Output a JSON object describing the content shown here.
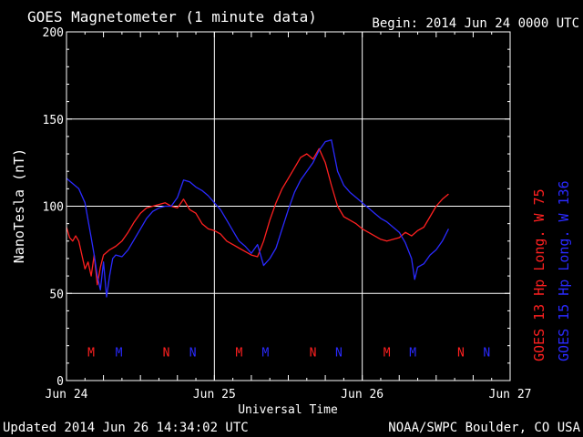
{
  "header": {
    "title": "GOES Magnetometer (1 minute data)",
    "begin": "Begin:  2014 Jun 24 0000 UTC"
  },
  "footer": {
    "updated": "Updated 2014 Jun 26 14:34:02 UTC",
    "credit": "NOAA/SWPC Boulder, CO USA"
  },
  "chart_data": {
    "type": "line",
    "title": "GOES Magnetometer (1 minute data)",
    "xlabel": "Universal Time",
    "ylabel": "NanoTesla (nT)",
    "xlim": [
      0,
      72
    ],
    "ylim": [
      0,
      200
    ],
    "y_ticks": [
      0,
      50,
      100,
      150,
      200
    ],
    "x_ticks": [
      {
        "value": 0,
        "label": "Jun 24"
      },
      {
        "value": 24,
        "label": "Jun 25"
      },
      {
        "value": 48,
        "label": "Jun 26"
      },
      {
        "value": 72,
        "label": "Jun 27"
      }
    ],
    "grid": true,
    "series": [
      {
        "name": "GOES 13 Hp  Long. W 75",
        "color": "#ff2020",
        "points": [
          [
            0,
            88
          ],
          [
            0.5,
            82
          ],
          [
            1,
            80
          ],
          [
            1.5,
            83
          ],
          [
            2,
            80
          ],
          [
            2.5,
            72
          ],
          [
            3,
            64
          ],
          [
            3.5,
            68
          ],
          [
            4,
            60
          ],
          [
            4.5,
            72
          ],
          [
            5,
            55
          ],
          [
            5.5,
            65
          ],
          [
            6,
            72
          ],
          [
            7,
            75
          ],
          [
            8,
            77
          ],
          [
            9,
            80
          ],
          [
            10,
            85
          ],
          [
            11,
            91
          ],
          [
            12,
            96
          ],
          [
            13,
            99
          ],
          [
            14,
            100
          ],
          [
            15,
            101
          ],
          [
            16,
            102
          ],
          [
            17,
            100
          ],
          [
            18,
            99
          ],
          [
            19,
            104
          ],
          [
            20,
            98
          ],
          [
            21,
            96
          ],
          [
            22,
            90
          ],
          [
            23,
            87
          ],
          [
            24,
            86
          ],
          [
            25,
            84
          ],
          [
            26,
            80
          ],
          [
            27,
            78
          ],
          [
            28,
            76
          ],
          [
            29,
            74
          ],
          [
            30,
            72
          ],
          [
            31,
            71
          ],
          [
            32,
            80
          ],
          [
            33,
            92
          ],
          [
            34,
            102
          ],
          [
            35,
            110
          ],
          [
            36,
            116
          ],
          [
            37,
            122
          ],
          [
            38,
            128
          ],
          [
            39,
            130
          ],
          [
            40,
            127
          ],
          [
            41,
            133
          ],
          [
            42,
            125
          ],
          [
            43,
            112
          ],
          [
            44,
            100
          ],
          [
            45,
            94
          ],
          [
            46,
            92
          ],
          [
            47,
            90
          ],
          [
            48,
            87
          ],
          [
            49,
            85
          ],
          [
            50,
            83
          ],
          [
            51,
            81
          ],
          [
            52,
            80
          ],
          [
            53,
            81
          ],
          [
            54,
            82
          ],
          [
            55,
            85
          ],
          [
            56,
            83
          ],
          [
            57,
            86
          ],
          [
            58,
            88
          ],
          [
            59,
            94
          ],
          [
            60,
            100
          ],
          [
            61,
            104
          ],
          [
            62,
            107
          ]
        ]
      },
      {
        "name": "GOES 15 Hp  Long. W 136",
        "color": "#2a2aff",
        "points": [
          [
            0,
            116
          ],
          [
            1,
            113
          ],
          [
            2,
            110
          ],
          [
            3,
            102
          ],
          [
            4,
            82
          ],
          [
            4.5,
            72
          ],
          [
            5,
            60
          ],
          [
            5.5,
            52
          ],
          [
            6,
            68
          ],
          [
            6.5,
            48
          ],
          [
            7,
            60
          ],
          [
            7.5,
            70
          ],
          [
            8,
            72
          ],
          [
            9,
            71
          ],
          [
            10,
            75
          ],
          [
            11,
            81
          ],
          [
            12,
            87
          ],
          [
            13,
            93
          ],
          [
            14,
            97
          ],
          [
            15,
            99
          ],
          [
            16,
            100
          ],
          [
            17,
            100
          ],
          [
            18,
            105
          ],
          [
            19,
            115
          ],
          [
            20,
            114
          ],
          [
            21,
            111
          ],
          [
            22,
            109
          ],
          [
            23,
            106
          ],
          [
            24,
            102
          ],
          [
            25,
            98
          ],
          [
            26,
            92
          ],
          [
            27,
            86
          ],
          [
            28,
            80
          ],
          [
            29,
            77
          ],
          [
            30,
            73
          ],
          [
            31,
            78
          ],
          [
            32,
            66
          ],
          [
            33,
            70
          ],
          [
            34,
            76
          ],
          [
            35,
            87
          ],
          [
            36,
            98
          ],
          [
            37,
            108
          ],
          [
            38,
            115
          ],
          [
            39,
            120
          ],
          [
            40,
            125
          ],
          [
            41,
            132
          ],
          [
            42,
            137
          ],
          [
            43,
            138
          ],
          [
            44,
            120
          ],
          [
            45,
            112
          ],
          [
            46,
            108
          ],
          [
            47,
            105
          ],
          [
            48,
            102
          ],
          [
            49,
            99
          ],
          [
            50,
            96
          ],
          [
            51,
            93
          ],
          [
            52,
            91
          ],
          [
            53,
            88
          ],
          [
            54,
            85
          ],
          [
            55,
            79
          ],
          [
            56,
            70
          ],
          [
            56.5,
            58
          ],
          [
            57,
            65
          ],
          [
            58,
            67
          ],
          [
            59,
            72
          ],
          [
            60,
            75
          ],
          [
            61,
            80
          ],
          [
            62,
            87
          ]
        ]
      }
    ],
    "markers": [
      {
        "label": "M",
        "x": 4,
        "color": "#ff2020"
      },
      {
        "label": "M",
        "x": 8.5,
        "color": "#2a2aff"
      },
      {
        "label": "N",
        "x": 16.2,
        "color": "#ff2020"
      },
      {
        "label": "N",
        "x": 20.5,
        "color": "#2a2aff"
      },
      {
        "label": "M",
        "x": 28,
        "color": "#ff2020"
      },
      {
        "label": "M",
        "x": 32.3,
        "color": "#2a2aff"
      },
      {
        "label": "N",
        "x": 40,
        "color": "#ff2020"
      },
      {
        "label": "N",
        "x": 44.2,
        "color": "#2a2aff"
      },
      {
        "label": "M",
        "x": 52,
        "color": "#ff2020"
      },
      {
        "label": "M",
        "x": 56.2,
        "color": "#2a2aff"
      },
      {
        "label": "N",
        "x": 64,
        "color": "#ff2020"
      },
      {
        "label": "N",
        "x": 68.2,
        "color": "#2a2aff"
      }
    ],
    "marker_y": 17,
    "legend_position": "right"
  }
}
